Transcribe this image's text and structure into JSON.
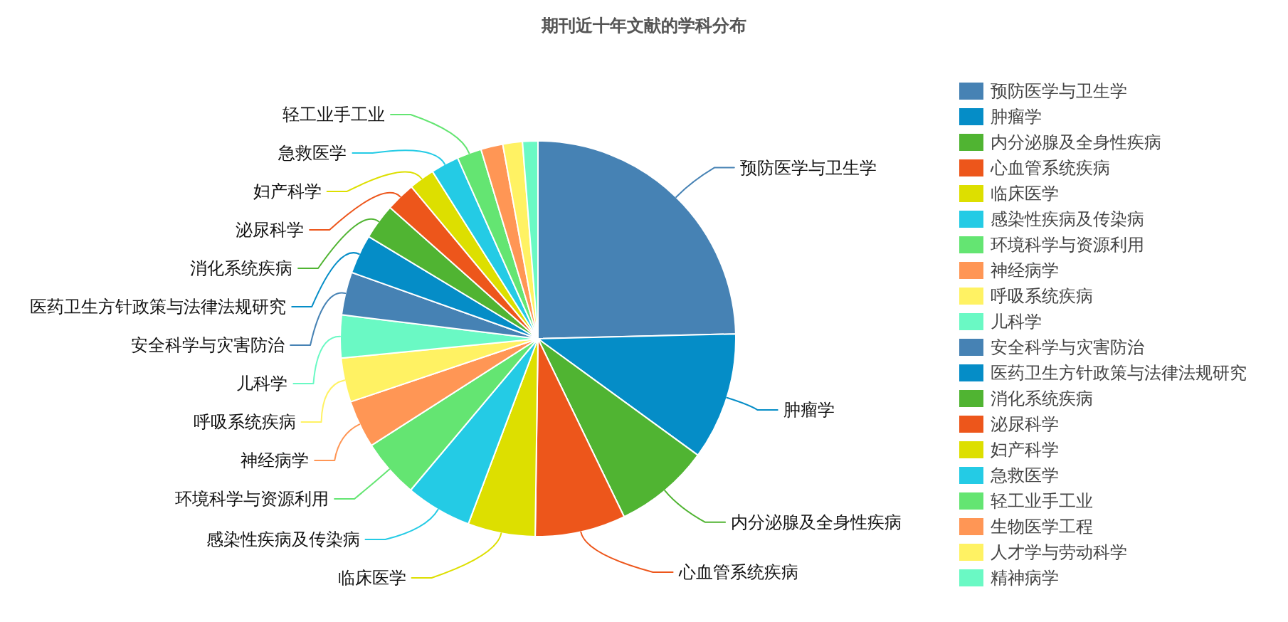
{
  "chart_data": {
    "type": "pie",
    "title": "期刊近十年文献的学科分布",
    "categories": [
      "预防医学与卫生学",
      "肿瘤学",
      "内分泌腺及全身性疾病",
      "心血管系统疾病",
      "临床医学",
      "感染性疾病及传染病",
      "环境科学与资源利用",
      "神经病学",
      "呼吸系统疾病",
      "儿科学",
      "安全科学与灾害防治",
      "医药卫生方针政策与法律法规研究",
      "消化系统疾病",
      "泌尿科学",
      "妇产科学",
      "急救医学",
      "轻工业手工业",
      "生物医学工程",
      "人才学与劳动科学",
      "精神病学"
    ],
    "values": [
      24.6,
      10.4,
      7.8,
      7.4,
      5.5,
      5.4,
      4.8,
      3.9,
      3.6,
      3.5,
      3.5,
      3.2,
      2.9,
      2.4,
      2.1,
      2.3,
      2.0,
      1.8,
      1.6,
      1.25
    ],
    "colors": [
      "#4682b4",
      "#058dc7",
      "#50b432",
      "#ed561b",
      "#dddf00",
      "#24cbe5",
      "#64e572",
      "#ff9655",
      "#fff263",
      "#6af9c4",
      "#4682b4",
      "#058dc7",
      "#50b432",
      "#ed561b",
      "#dddf00",
      "#24cbe5",
      "#64e572",
      "#ff9655",
      "#fff263",
      "#6af9c4"
    ],
    "legend": "right"
  }
}
